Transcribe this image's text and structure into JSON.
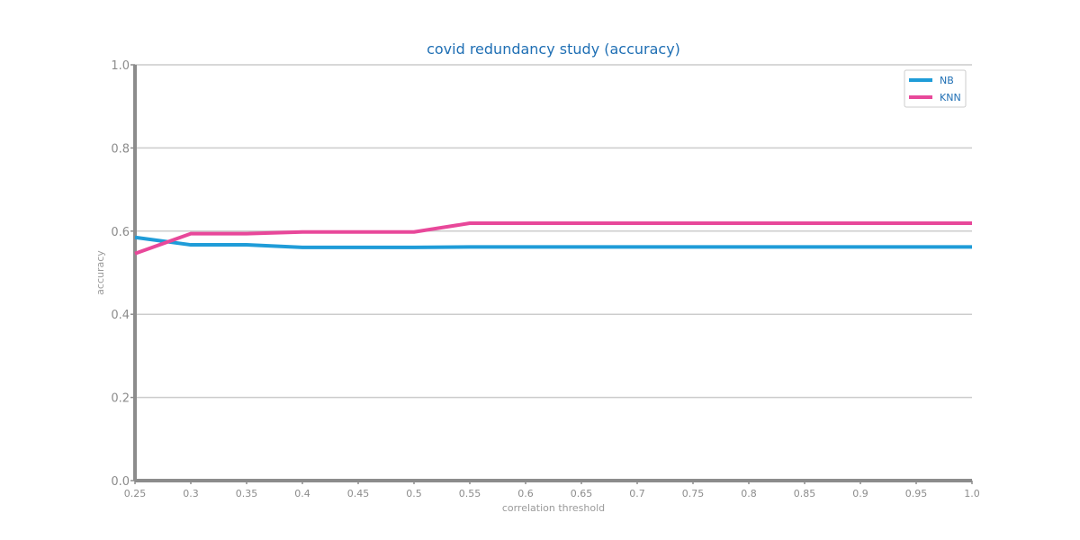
{
  "chart_data": {
    "type": "line",
    "title": "covid redundancy study (accuracy)",
    "xlabel": "correlation threshold",
    "ylabel": "accuracy",
    "xlim": [
      0.25,
      1.0
    ],
    "ylim": [
      0.0,
      1.0
    ],
    "x": [
      0.25,
      0.3,
      0.35,
      0.4,
      0.45,
      0.5,
      0.55,
      0.6,
      0.65,
      0.7,
      0.75,
      0.8,
      0.85,
      0.9,
      0.95,
      1.0
    ],
    "x_tick_labels": [
      "0.25",
      "0.3",
      "0.35",
      "0.4",
      "0.45",
      "0.5",
      "0.55",
      "0.6",
      "0.65",
      "0.7",
      "0.75",
      "0.8",
      "0.85",
      "0.9",
      "0.95",
      "1.0"
    ],
    "y_ticks": [
      0.0,
      0.2,
      0.4,
      0.6,
      0.8,
      1.0
    ],
    "y_tick_labels": [
      "0.0",
      "0.2",
      "0.4",
      "0.6",
      "0.8",
      "1.0"
    ],
    "grid": "horizontal",
    "legend_position": "top-right",
    "series": [
      {
        "name": "NB",
        "color": "#1f9cd8",
        "values": [
          0.585,
          0.567,
          0.567,
          0.561,
          0.561,
          0.561,
          0.562,
          0.562,
          0.562,
          0.562,
          0.562,
          0.562,
          0.562,
          0.562,
          0.562,
          0.562
        ]
      },
      {
        "name": "KNN",
        "color": "#e8489a",
        "values": [
          0.546,
          0.594,
          0.594,
          0.598,
          0.598,
          0.598,
          0.619,
          0.619,
          0.619,
          0.619,
          0.619,
          0.619,
          0.619,
          0.619,
          0.619,
          0.619
        ]
      }
    ]
  }
}
